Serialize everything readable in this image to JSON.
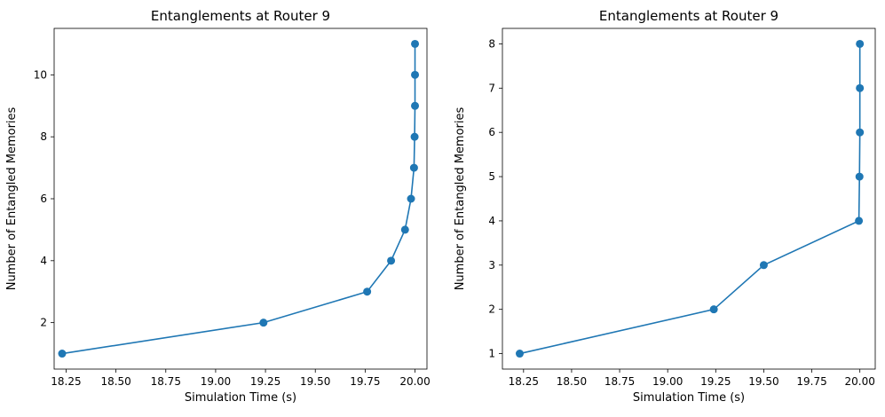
{
  "chart_data": [
    {
      "type": "line",
      "title": "Entanglements at Router 9",
      "xlabel": "Simulation Time (s)",
      "ylabel": "Number of Entangled Memories",
      "xlim": [
        18.19,
        20.06
      ],
      "ylim": [
        0.5,
        11.5
      ],
      "xticks": [
        "18.25",
        "18.50",
        "18.75",
        "19.00",
        "19.25",
        "19.50",
        "19.75",
        "20.00"
      ],
      "yticks": [
        "2",
        "4",
        "6",
        "8",
        "10"
      ],
      "grid": false,
      "color": "#1f77b4",
      "marker": "circle",
      "x": [
        18.23,
        19.24,
        19.76,
        19.88,
        19.95,
        19.98,
        19.995,
        19.998,
        20.0,
        20.0,
        20.0
      ],
      "y": [
        1,
        2,
        3,
        4,
        5,
        6,
        7,
        8,
        9,
        10,
        11
      ]
    },
    {
      "type": "line",
      "title": "Entanglements at Router 9",
      "xlabel": "Simulation Time (s)",
      "ylabel": "Number of Entangled Memories",
      "xlim": [
        18.14,
        20.08
      ],
      "ylim": [
        0.65,
        8.35
      ],
      "xticks": [
        "18.25",
        "18.50",
        "18.75",
        "19.00",
        "19.25",
        "19.50",
        "19.75",
        "20.00"
      ],
      "yticks": [
        "1",
        "2",
        "3",
        "4",
        "5",
        "6",
        "7",
        "8"
      ],
      "grid": false,
      "color": "#1f77b4",
      "marker": "circle",
      "x": [
        18.23,
        19.24,
        19.5,
        19.995,
        19.998,
        20.0,
        20.0,
        20.0
      ],
      "y": [
        1,
        2,
        3,
        4,
        5,
        6,
        7,
        8
      ]
    }
  ]
}
